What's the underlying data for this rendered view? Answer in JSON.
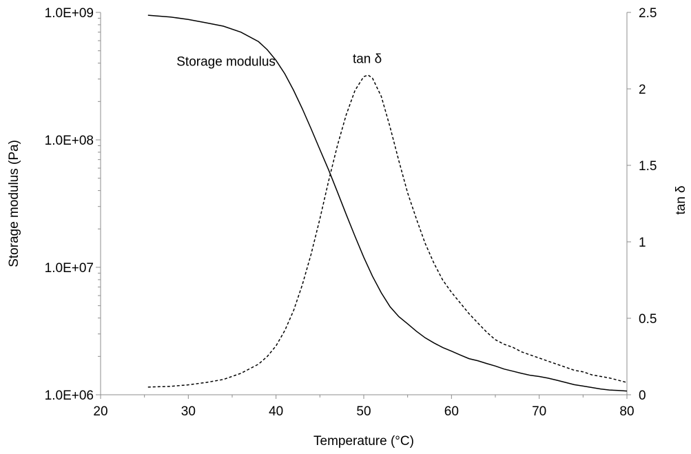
{
  "chart_data": {
    "type": "line",
    "xlabel": "Temperature (°C)",
    "ylabel_left": "Storage modulus (Pa)",
    "ylabel_right": "tan δ",
    "xlim": [
      20,
      80
    ],
    "x_ticks": [
      20,
      30,
      40,
      50,
      60,
      70,
      80
    ],
    "x_tick_labels": [
      "20",
      "30",
      "40",
      "50",
      "60",
      "70",
      "80"
    ],
    "ylim_left": [
      1000000,
      1000000000
    ],
    "y_left_scale": "log",
    "y_left_ticks": [
      1000000,
      10000000,
      100000000,
      1000000000
    ],
    "y_left_tick_labels": [
      "1.0E+06",
      "1.0E+07",
      "1.0E+08",
      "1.0E+09"
    ],
    "ylim_right": [
      0,
      2.5
    ],
    "y_right_ticks": [
      0,
      0.5,
      1,
      1.5,
      2,
      2.5
    ],
    "y_right_tick_labels": [
      "0",
      "0.5",
      "1",
      "1.5",
      "2",
      "2.5"
    ],
    "grid": false,
    "annotations": [
      {
        "text": "Storage modulus",
        "x": 34.3,
        "y_axis": "left",
        "y": 380000000
      },
      {
        "text": "tan δ",
        "x": 50.4,
        "y_axis": "right",
        "y": 2.17
      }
    ],
    "series": [
      {
        "axis": "left",
        "style": "solid",
        "x": [
          25.4,
          28,
          30,
          32,
          34,
          36,
          38,
          39,
          40,
          41,
          42,
          43,
          44,
          45,
          46,
          47,
          48,
          49,
          50,
          51,
          52,
          53,
          54,
          55,
          56,
          57,
          58,
          59,
          60,
          61,
          62,
          63,
          64,
          65,
          66,
          67,
          68,
          69,
          70,
          71,
          72,
          73,
          74,
          75,
          76,
          77,
          78,
          79,
          80
        ],
        "y": [
          950000000,
          920000000,
          880000000,
          830000000,
          780000000,
          700000000,
          590000000,
          510000000,
          420000000,
          330000000,
          245000000,
          175000000,
          122000000,
          84000000,
          58000000,
          39000000,
          26000000,
          17500000,
          12000000,
          8500000,
          6300000,
          4900000,
          4100000,
          3600000,
          3150000,
          2800000,
          2550000,
          2350000,
          2200000,
          2050000,
          1920000,
          1850000,
          1760000,
          1680000,
          1590000,
          1530000,
          1470000,
          1420000,
          1390000,
          1350000,
          1300000,
          1250000,
          1200000,
          1170000,
          1140000,
          1110000,
          1090000,
          1080000,
          1070000
        ]
      },
      {
        "axis": "right",
        "style": "dashed",
        "x": [
          25.4,
          28,
          30,
          32,
          34,
          36,
          38,
          39,
          40,
          41,
          42,
          43,
          44,
          45,
          46,
          47,
          48,
          49,
          50,
          50.5,
          51,
          52,
          53,
          54,
          55,
          56,
          57,
          58,
          59,
          60,
          61,
          62,
          63,
          64,
          65,
          66,
          67,
          68,
          69,
          70,
          71,
          72,
          73,
          74,
          75,
          76,
          77,
          78,
          79,
          80
        ],
        "y": [
          0.05,
          0.055,
          0.065,
          0.08,
          0.1,
          0.14,
          0.2,
          0.25,
          0.32,
          0.42,
          0.55,
          0.72,
          0.92,
          1.15,
          1.4,
          1.63,
          1.83,
          1.99,
          2.08,
          2.09,
          2.07,
          1.95,
          1.75,
          1.53,
          1.32,
          1.15,
          0.99,
          0.86,
          0.75,
          0.67,
          0.6,
          0.53,
          0.47,
          0.41,
          0.36,
          0.33,
          0.31,
          0.28,
          0.26,
          0.24,
          0.22,
          0.2,
          0.18,
          0.16,
          0.15,
          0.13,
          0.12,
          0.11,
          0.095,
          0.08
        ]
      }
    ]
  }
}
